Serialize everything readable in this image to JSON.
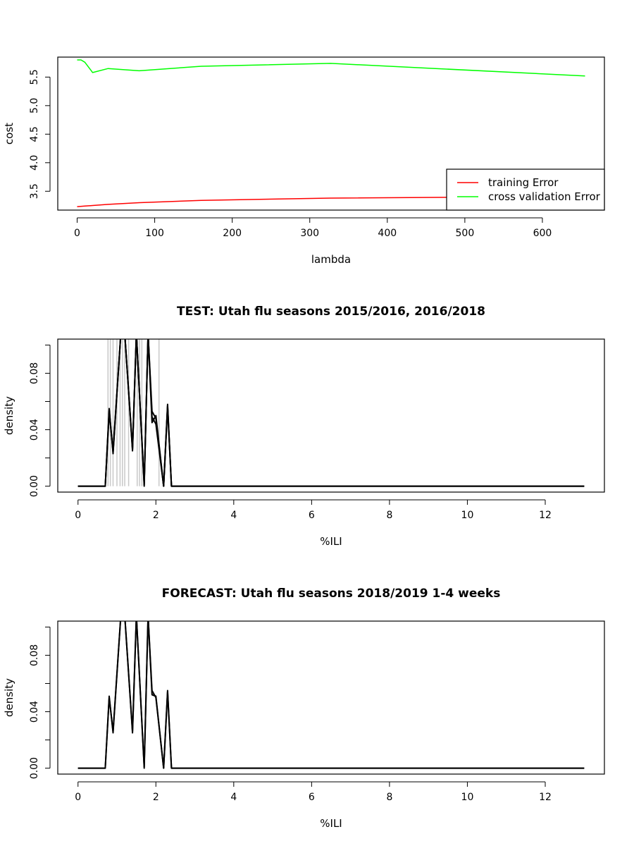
{
  "chart_data": [
    {
      "type": "line",
      "title": "",
      "xlabel": "lambda",
      "ylabel": "cost",
      "xlim": [
        -25,
        680
      ],
      "ylim": [
        3.17,
        5.85
      ],
      "xticks": [
        0,
        100,
        200,
        300,
        400,
        500,
        600
      ],
      "yticks": [
        3.5,
        4.0,
        4.5,
        5.0,
        5.5
      ],
      "ytick_labels": [
        "3.5",
        "4.0",
        "4.5",
        "5.0",
        "5.5"
      ],
      "grid": false,
      "legend_position": "bottom-right",
      "series": [
        {
          "name": "training Error",
          "color": "#ff0000",
          "x": [
            0,
            10,
            20,
            40,
            80,
            160,
            327,
            655
          ],
          "y": [
            3.23,
            3.24,
            3.25,
            3.27,
            3.3,
            3.34,
            3.38,
            3.41
          ]
        },
        {
          "name": "cross validation Error",
          "color": "#00ff00",
          "x": [
            0,
            5,
            10,
            20,
            40,
            80,
            160,
            327,
            655
          ],
          "y": [
            5.8,
            5.8,
            5.76,
            5.58,
            5.65,
            5.61,
            5.69,
            5.74,
            5.52
          ]
        }
      ]
    },
    {
      "type": "line",
      "title": "TEST: Utah  flu seasons 2015/2016, 2016/2018",
      "xlabel": "%ILI",
      "ylabel": "density",
      "xlim": [
        -0.52,
        13.52
      ],
      "ylim": [
        -0.0042,
        0.1042
      ],
      "xticks": [
        0,
        2,
        4,
        6,
        8,
        10,
        12
      ],
      "yticks": [
        0.0,
        0.02,
        0.04,
        0.06,
        0.08,
        0.1
      ],
      "ytick_labels": [
        "0.00",
        "",
        "0.04",
        "",
        "0.08",
        ""
      ],
      "vlines_color": "#c8c8c8",
      "vlines": [
        0.77,
        0.83,
        0.9,
        1.0,
        1.08,
        1.14,
        1.2,
        1.3,
        1.52,
        1.58,
        1.64,
        2.08
      ],
      "series": [
        {
          "color": "#000000",
          "x": [
            0,
            0.7,
            0.8,
            0.9,
            1.1,
            1.2,
            1.4,
            1.5,
            1.7,
            1.8,
            1.9,
            2.0,
            2.2,
            2.3,
            2.4,
            13
          ],
          "y": [
            0,
            0,
            0.055,
            0.023,
            0.108,
            0.108,
            0.025,
            0.108,
            0,
            0.108,
            0.053,
            0.048,
            0,
            0.058,
            0,
            0
          ]
        },
        {
          "color": "#000000",
          "x": [
            0,
            0.7,
            0.8,
            0.9,
            1.1,
            1.2,
            1.4,
            1.5,
            1.7,
            1.8,
            1.9,
            2.0,
            2.2,
            2.3,
            2.4,
            13
          ],
          "y": [
            0,
            0,
            0.052,
            0.025,
            0.108,
            0.108,
            0.027,
            0.108,
            0.002,
            0.108,
            0.045,
            0.05,
            0,
            0.056,
            0,
            0
          ]
        },
        {
          "color": "#000000",
          "x": [
            0,
            0.7,
            0.8,
            0.9,
            1.1,
            1.2,
            1.4,
            1.5,
            1.7,
            1.8,
            1.9,
            2.0,
            2.2,
            2.3,
            2.4,
            13
          ],
          "y": [
            0,
            0,
            0.054,
            0.024,
            0.108,
            0.108,
            0.026,
            0.108,
            0.001,
            0.108,
            0.049,
            0.044,
            0,
            0.057,
            0,
            0
          ]
        }
      ]
    },
    {
      "type": "line",
      "title": "FORECAST: Utah flu seasons 2018/2019 1-4 weeks",
      "xlabel": "%ILI",
      "ylabel": "density",
      "xlim": [
        -0.52,
        13.52
      ],
      "ylim": [
        -0.0042,
        0.1042
      ],
      "xticks": [
        0,
        2,
        4,
        6,
        8,
        10,
        12
      ],
      "yticks": [
        0.0,
        0.02,
        0.04,
        0.06,
        0.08,
        0.1
      ],
      "ytick_labels": [
        "0.00",
        "",
        "0.04",
        "",
        "0.08",
        ""
      ],
      "series": [
        {
          "color": "#000000",
          "x": [
            0,
            0.7,
            0.8,
            0.9,
            1.1,
            1.2,
            1.4,
            1.5,
            1.7,
            1.8,
            1.9,
            2.0,
            2.2,
            2.3,
            2.4,
            13
          ],
          "y": [
            0,
            0,
            0.051,
            0.025,
            0.108,
            0.108,
            0.025,
            0.108,
            0,
            0.108,
            0.055,
            0.05,
            0,
            0.055,
            0,
            0
          ]
        },
        {
          "color": "#000000",
          "x": [
            0,
            0.7,
            0.8,
            0.9,
            1.1,
            1.2,
            1.4,
            1.5,
            1.7,
            1.8,
            1.9,
            2.0,
            2.2,
            2.3,
            2.4,
            13
          ],
          "y": [
            0,
            0,
            0.05,
            0.026,
            0.108,
            0.108,
            0.026,
            0.108,
            0.001,
            0.108,
            0.052,
            0.051,
            0,
            0.054,
            0,
            0
          ]
        }
      ]
    }
  ]
}
